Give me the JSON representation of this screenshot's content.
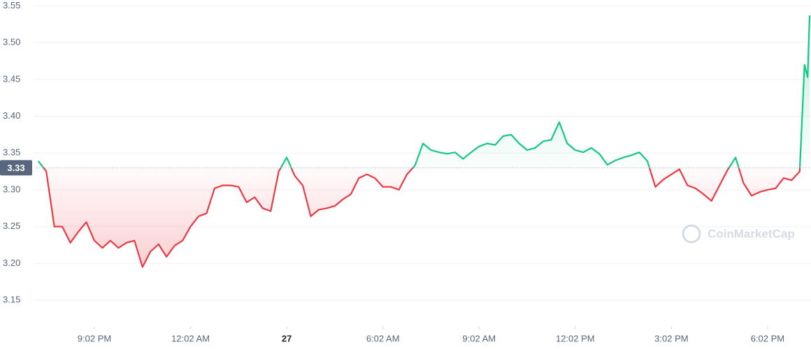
{
  "chart_data": {
    "type": "line",
    "x": [
      -1.75,
      -1.5,
      -1.25,
      -1,
      -0.75,
      -0.5,
      -0.25,
      0,
      0.25,
      0.5,
      0.75,
      1,
      1.25,
      1.5,
      1.75,
      2,
      2.25,
      2.5,
      2.75,
      3,
      3.25,
      3.5,
      3.75,
      4,
      4.25,
      4.5,
      4.75,
      5,
      5.25,
      5.5,
      5.75,
      6,
      6.25,
      6.5,
      6.75,
      7,
      7.25,
      7.5,
      7.75,
      8,
      8.25,
      8.5,
      8.75,
      9,
      9.25,
      9.5,
      9.75,
      10,
      10.25,
      10.5,
      10.75,
      11,
      11.25,
      11.5,
      11.75,
      12,
      12.25,
      12.5,
      12.75,
      13,
      13.25,
      13.5,
      13.75,
      14,
      14.25,
      14.5,
      14.75,
      15,
      15.25,
      15.5,
      15.75,
      16,
      16.25,
      16.5,
      16.75,
      17,
      17.25,
      17.5,
      17.75,
      18,
      18.25,
      18.5,
      18.75,
      19,
      19.25,
      19.5,
      19.75,
      20,
      20.25,
      20.5,
      20.75,
      21,
      21.25,
      21.5,
      21.75,
      22,
      22.15,
      22.25,
      22.31
    ],
    "values": [
      3.339,
      3.325,
      3.25,
      3.25,
      3.228,
      3.243,
      3.256,
      3.231,
      3.221,
      3.231,
      3.221,
      3.228,
      3.231,
      3.195,
      3.216,
      3.226,
      3.209,
      3.224,
      3.231,
      3.25,
      3.264,
      3.268,
      3.302,
      3.306,
      3.306,
      3.304,
      3.283,
      3.29,
      3.275,
      3.271,
      3.325,
      3.344,
      3.319,
      3.306,
      3.264,
      3.273,
      3.275,
      3.278,
      3.287,
      3.294,
      3.316,
      3.321,
      3.316,
      3.304,
      3.304,
      3.3,
      3.321,
      3.333,
      3.363,
      3.354,
      3.351,
      3.349,
      3.351,
      3.342,
      3.351,
      3.359,
      3.363,
      3.361,
      3.373,
      3.375,
      3.363,
      3.354,
      3.357,
      3.366,
      3.368,
      3.392,
      3.363,
      3.354,
      3.351,
      3.357,
      3.349,
      3.334,
      3.34,
      3.344,
      3.347,
      3.351,
      3.339,
      3.304,
      3.314,
      3.321,
      3.328,
      3.306,
      3.302,
      3.294,
      3.285,
      3.306,
      3.327,
      3.344,
      3.309,
      3.292,
      3.297,
      3.3,
      3.302,
      3.316,
      3.313,
      3.325,
      3.47,
      3.453,
      3.537
    ],
    "baseline": 3.33,
    "up_color": "#16c784",
    "down_color": "#ea3943",
    "xlim": [
      -1.81,
      22.31
    ],
    "xticks": [
      {
        "value": 0,
        "label": "9:02 PM"
      },
      {
        "value": 3,
        "label": "12:02 AM"
      },
      {
        "value": 6,
        "label": "27"
      },
      {
        "value": 9,
        "label": "6:02 AM"
      },
      {
        "value": 12,
        "label": "9:02 AM"
      },
      {
        "value": 15,
        "label": "12:02 PM"
      },
      {
        "value": 18,
        "label": "3:02 PM"
      },
      {
        "value": 21,
        "label": "6:02 PM"
      }
    ],
    "ylim": [
      3.114,
      3.558
    ],
    "yticks": [
      3.15,
      {
        "value": 3.2,
        "label": "3.20"
      },
      3.25,
      {
        "value": 3.3,
        "label": "3.30"
      },
      3.35,
      {
        "value": 3.4,
        "label": "3.40"
      },
      3.45,
      {
        "value": 3.5,
        "label": "3.50"
      },
      3.55
    ],
    "grid": true,
    "watermark": "CoinMarketCap"
  }
}
